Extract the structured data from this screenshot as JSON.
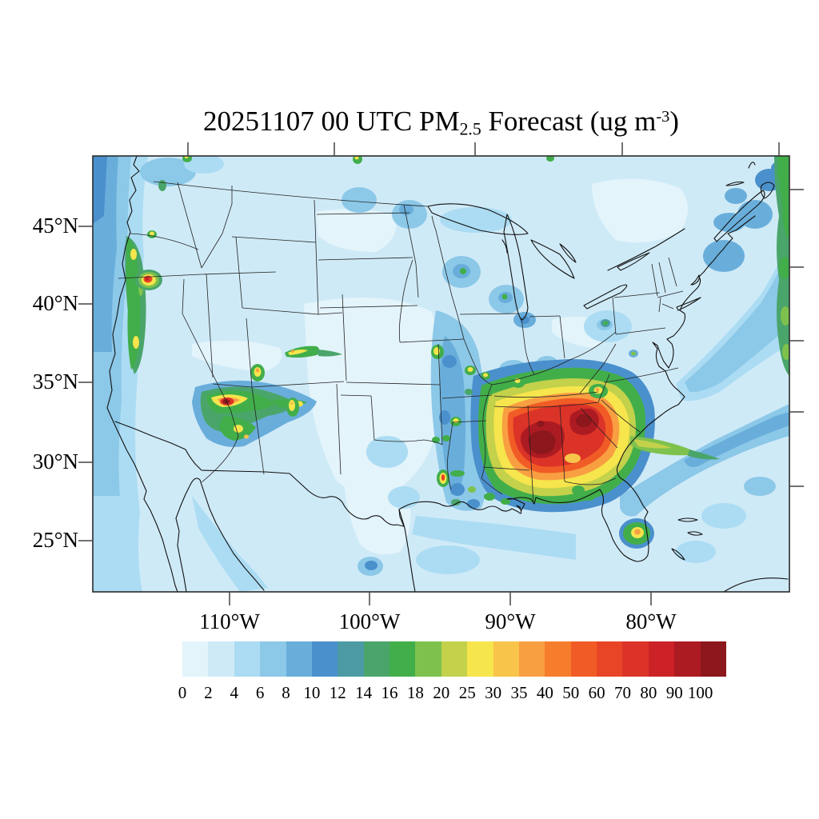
{
  "title": {
    "prefix": "20251107 00 UTC PM",
    "subscript": "2.5",
    "middle": " Forecast (ug m",
    "superscript": "-3",
    "suffix": ")",
    "full_text": "20251107 00 UTC PM2.5 Forecast (ug m-3)"
  },
  "axes": {
    "lat": {
      "labels": [
        "45°N",
        "40°N",
        "35°N",
        "30°N",
        "25°N"
      ]
    },
    "lon": {
      "labels": [
        "110°W",
        "100°W",
        "90°W",
        "80°W"
      ]
    }
  },
  "chart_data": {
    "type": "heatmap",
    "title": "20251107 00 UTC PM2.5 Forecast (ug m-3)",
    "units": "ug m-3",
    "region": "Continental United States with adjacent Canada, Mexico, Gulf of Mexico and Atlantic",
    "lat_tick_labels": [
      "25°N",
      "30°N",
      "35°N",
      "40°N",
      "45°N"
    ],
    "lon_tick_labels": [
      "110°W",
      "100°W",
      "90°W",
      "80°W"
    ],
    "grid": "off",
    "legend_position": "bottom colorbar",
    "colorbar": {
      "levels": [
        "0",
        "2",
        "4",
        "6",
        "8",
        "10",
        "12",
        "14",
        "16",
        "18",
        "20",
        "25",
        "30",
        "35",
        "40",
        "50",
        "60",
        "70",
        "80",
        "90",
        "100"
      ],
      "colors": [
        "#e3f4fb",
        "#cfeaf7",
        "#abdcf3",
        "#8cc8e8",
        "#69aedb",
        "#4a90cc",
        "#4b9aa4",
        "#4aa56b",
        "#41ae4a",
        "#7ec24d",
        "#c3d14b",
        "#f6e54c",
        "#f8c44a",
        "#f89f42",
        "#f67d2c",
        "#f15c26",
        "#e84527",
        "#dc3328",
        "#cb2127",
        "#ad1b22",
        "#8c171c"
      ],
      "note": "21 bins; lowest bin starts at 0, last bin is values greater than 100"
    },
    "features": [
      {
        "region": "Southeast US (Mississippi / Alabama / Georgia)",
        "peak_value": ">100",
        "description": "large multi-state plume, dark-red cores surrounded by red, orange, yellow and green rings"
      },
      {
        "region": "Plume east of Georgia/South Carolina coast over Atlantic",
        "peak_value": "20-25",
        "description": "green-yellow tongue extending offshore"
      },
      {
        "region": "Northeast Arizona / Four Corners",
        "peak_value": ">100",
        "description": "compact hotspot with maroon core and green/yellow halo, arms extending east and south"
      },
      {
        "region": "NW Nevada / SE Oregon",
        "peak_value": "60-80",
        "description": "small isolated red spot with yellow and green rings"
      },
      {
        "region": "Oregon / N. California coast",
        "peak_value": "16-25",
        "description": "narrow green coastal band with small yellow spots"
      },
      {
        "region": "Louisiana lower Mississippi",
        "peak_value": "~60",
        "description": "small red spot with yellow ring"
      },
      {
        "region": "South Florida",
        "peak_value": "35-40",
        "description": "small orange-core spot with green halo"
      },
      {
        "region": "North Carolina / N. Georgia dots",
        "peak_value": "30-35",
        "description": "small green dots with yellow-orange cores"
      },
      {
        "region": "Mississippi River valley",
        "peak_value": "8-12",
        "description": "broad blue band from Missouri to Louisiana"
      },
      {
        "region": "Scattered dots (Kansas City, St. Louis, Wisconsin, Michigan, Utah, Colorado, New Mexico)",
        "peak_value": "25-30",
        "description": "small green dots with yellow centers"
      },
      {
        "region": "Atlantic off Nova Scotia (right map edge)",
        "peak_value": "14-18",
        "description": "green band along eastern map edge"
      },
      {
        "region": "CONUS background",
        "peak_value": "0-6",
        "description": "pale blue background over most land and ocean"
      }
    ]
  }
}
